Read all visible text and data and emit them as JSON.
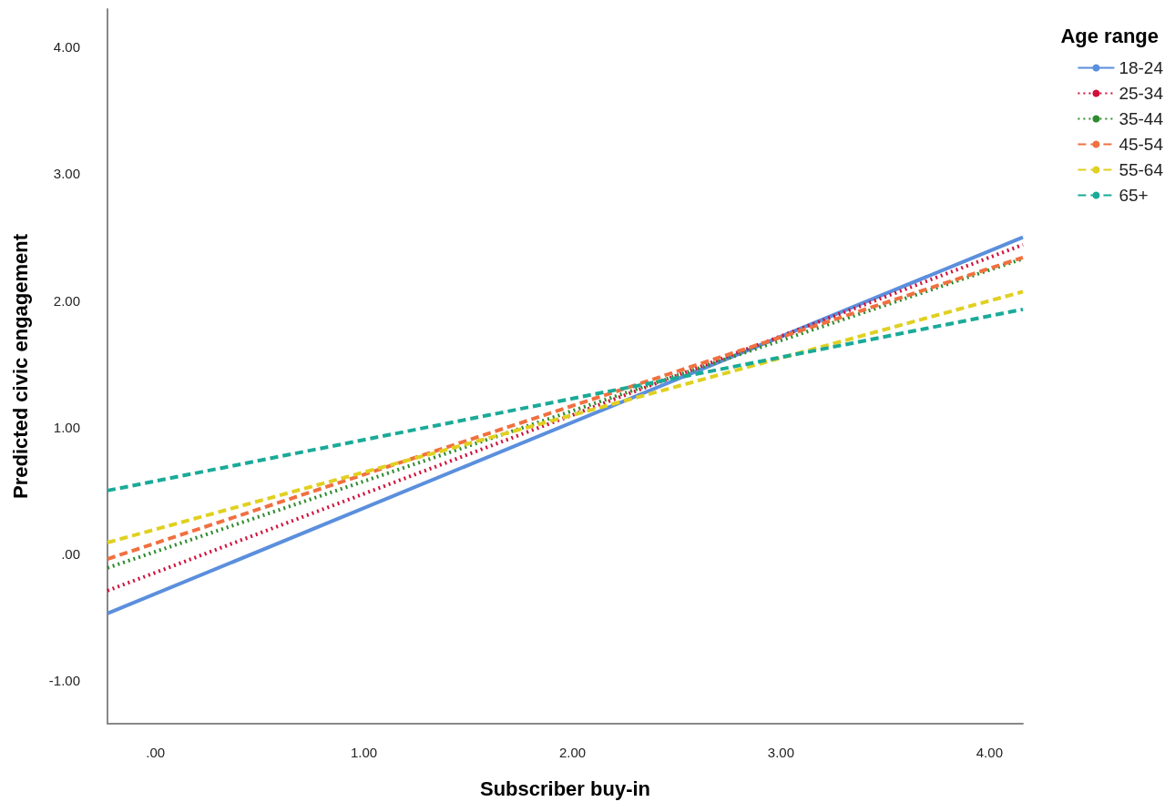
{
  "chart_data": {
    "type": "line",
    "xlabel": "Subscriber buy-in",
    "ylabel": "Predicted civic engagement",
    "legend_title": "Age range",
    "x": [
      -0.23,
      4.16
    ],
    "series": [
      {
        "name": "18-24",
        "color": "#5b8fdd",
        "line_style": "solid",
        "values": [
          -0.47,
          2.5
        ]
      },
      {
        "name": "25-34",
        "color": "#d0103a",
        "line_style": "dotted",
        "values": [
          -0.29,
          2.44
        ]
      },
      {
        "name": "35-44",
        "color": "#2e8b2e",
        "line_style": "dotted",
        "values": [
          -0.11,
          2.33
        ]
      },
      {
        "name": "45-54",
        "color": "#f07040",
        "line_style": "dashed",
        "values": [
          -0.04,
          2.34
        ]
      },
      {
        "name": "55-64",
        "color": "#e0d020",
        "line_style": "dashed",
        "values": [
          0.09,
          2.07
        ]
      },
      {
        "name": "65+",
        "color": "#1aaa98",
        "line_style": "dashed",
        "values": [
          0.5,
          1.93
        ]
      }
    ],
    "xlim": [
      -0.23,
      4.16
    ],
    "xticks": [
      {
        "value": 0,
        "label": ".00"
      },
      {
        "value": 1,
        "label": "1.00"
      },
      {
        "value": 2,
        "label": "2.00"
      },
      {
        "value": 3,
        "label": "3.00"
      },
      {
        "value": 4,
        "label": "4.00"
      }
    ],
    "ylim": [
      -1.34,
      4.3
    ],
    "yticks": [
      {
        "value": -1,
        "label": "-1.00"
      },
      {
        "value": 0,
        "label": ".00"
      },
      {
        "value": 1,
        "label": "1.00"
      },
      {
        "value": 2,
        "label": "2.00"
      },
      {
        "value": 3,
        "label": "3.00"
      },
      {
        "value": 4,
        "label": "4.00"
      }
    ],
    "grid": false,
    "legend": "top right",
    "marker": "none"
  }
}
